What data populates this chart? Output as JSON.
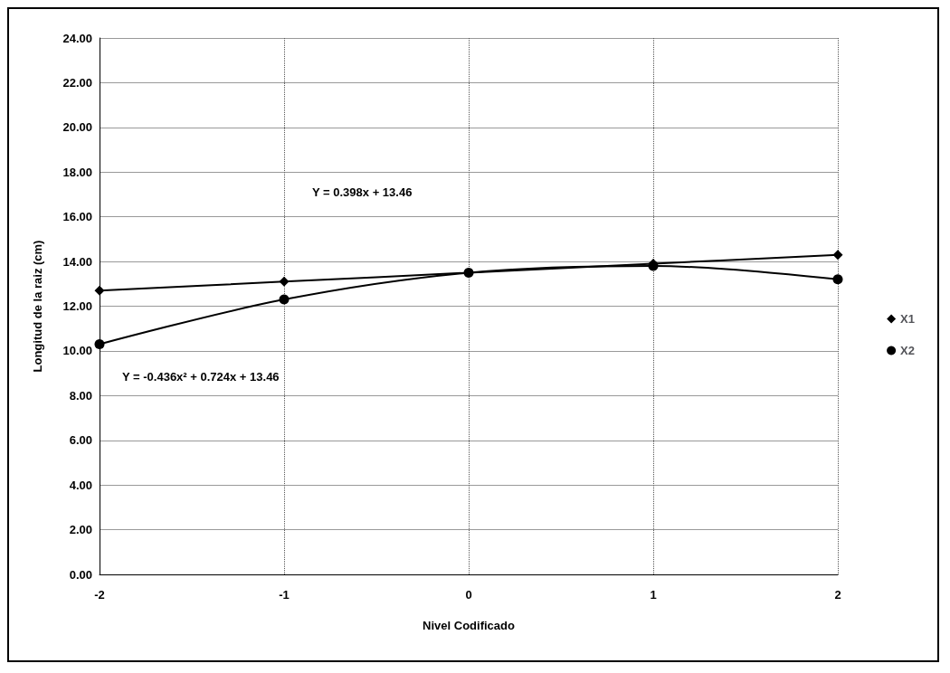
{
  "chart_data": {
    "type": "line",
    "xlabel": "Nivel Codificado",
    "ylabel": "Longitud de la raiz (cm)",
    "x": [
      -2,
      -1,
      0,
      1,
      2
    ],
    "series": [
      {
        "name": "X1",
        "color": "#000000",
        "marker": "diamond",
        "values": [
          12.7,
          13.1,
          13.5,
          13.9,
          14.3
        ]
      },
      {
        "name": "X2",
        "color": "#000000",
        "marker": "circle",
        "values": [
          10.3,
          12.3,
          13.5,
          13.8,
          13.2
        ]
      }
    ],
    "xlim": [
      -2,
      2
    ],
    "xticks": [
      -2,
      -1,
      0,
      1,
      2
    ],
    "ylim": [
      0,
      24
    ],
    "yticks": [
      {
        "value": 0,
        "label": "0.00"
      },
      {
        "value": 2,
        "label": "2.00"
      },
      {
        "value": 4,
        "label": "4.00"
      },
      {
        "value": 6,
        "label": "6.00"
      },
      {
        "value": 8,
        "label": "8.00"
      },
      {
        "value": 10,
        "label": "10.00"
      },
      {
        "value": 12,
        "label": "12.00"
      },
      {
        "value": 14,
        "label": "14.00"
      },
      {
        "value": 16,
        "label": "16.00"
      },
      {
        "value": 18,
        "label": "18.00"
      },
      {
        "value": 20,
        "label": "20.00"
      },
      {
        "value": 22,
        "label": "22.00"
      },
      {
        "value": 24,
        "label": "24.00"
      }
    ],
    "grid": true,
    "legend": "right",
    "line_style": "solid",
    "annotations": [
      "Y = 0.398x + 13.46",
      "Y = -0.436x² + 0.724x + 13.46"
    ]
  }
}
